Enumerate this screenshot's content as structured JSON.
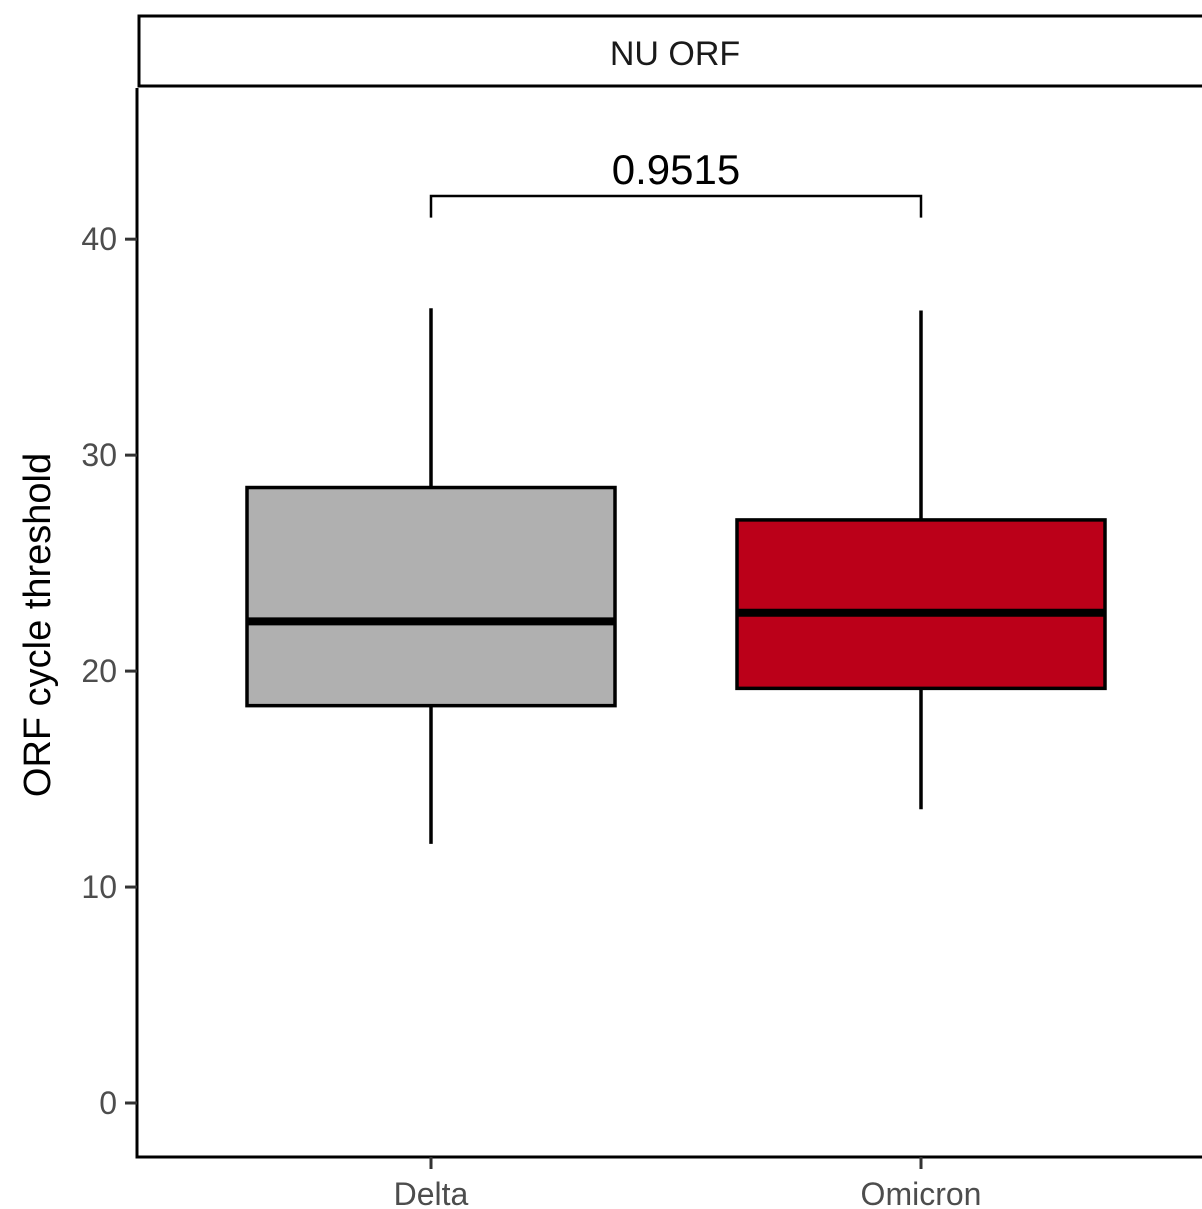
{
  "chart_data": {
    "type": "box",
    "facet_label": "NU ORF",
    "xlabel": "",
    "ylabel": "ORF cycle threshold",
    "ylim": [
      -2.5,
      47
    ],
    "y_ticks": [
      0,
      10,
      20,
      30,
      40
    ],
    "y_tick_labels": [
      "0",
      "10",
      "20",
      "30",
      "40"
    ],
    "categories": [
      "Delta",
      "Omicron"
    ],
    "boxes": [
      {
        "category": "Delta",
        "whisker_low": 12.0,
        "q1": 18.4,
        "median": 22.3,
        "q3": 28.5,
        "whisker_high": 36.8,
        "fill": "#b0b0b0"
      },
      {
        "category": "Omicron",
        "whisker_low": 13.6,
        "q1": 19.2,
        "median": 22.7,
        "q3": 27.0,
        "whisker_high": 36.7,
        "fill": "#bb0019"
      }
    ],
    "comparison": {
      "groups": [
        "Delta",
        "Omicron"
      ],
      "label": "0.9515",
      "y": 42.0,
      "tip": 1.0
    },
    "grid": false,
    "legend": "none"
  }
}
